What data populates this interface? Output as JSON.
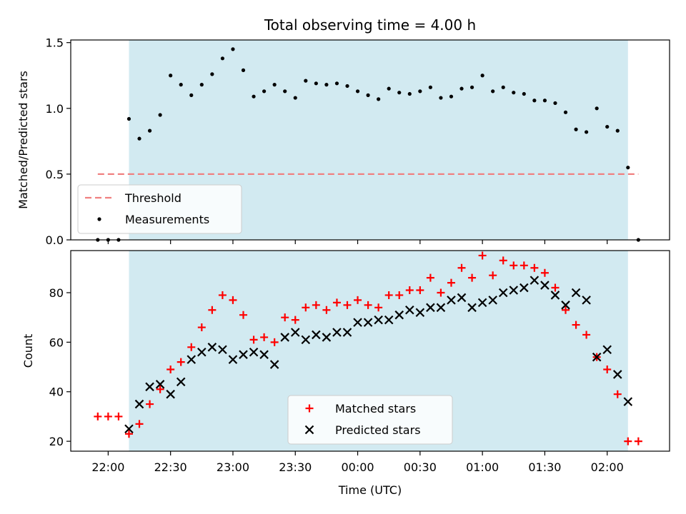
{
  "chart_data": {
    "title": "Total observing time = 4.00 h",
    "xlabel": "Time (UTC)",
    "x_ticks": [
      "22:00",
      "22:30",
      "23:00",
      "23:30",
      "00:00",
      "00:30",
      "01:00",
      "01:30",
      "02:00"
    ],
    "shaded_window": {
      "start": "22:10",
      "end": "02:10",
      "color": "#add8e6"
    },
    "panels": [
      {
        "type": "scatter",
        "ylabel": "Matched/Predicted stars",
        "ylim": [
          0,
          1.52
        ],
        "y_ticks": [
          0.0,
          0.5,
          1.0,
          1.5
        ],
        "legend": "lower-left",
        "threshold": {
          "name": "Threshold",
          "value": 0.5,
          "x_start": "21:55",
          "x_end": "02:15",
          "color": "#f08080"
        },
        "series": [
          {
            "name": "Measurements",
            "color": "#000000",
            "marker": "dot",
            "x": [
              "21:55",
              "22:00",
              "22:05",
              "22:10",
              "22:15",
              "22:20",
              "22:25",
              "22:30",
              "22:35",
              "22:40",
              "22:45",
              "22:50",
              "22:55",
              "23:00",
              "23:05",
              "23:10",
              "23:15",
              "23:20",
              "23:25",
              "23:30",
              "23:35",
              "23:40",
              "23:45",
              "23:50",
              "23:55",
              "00:00",
              "00:05",
              "00:10",
              "00:15",
              "00:20",
              "00:25",
              "00:30",
              "00:35",
              "00:40",
              "00:45",
              "00:50",
              "00:55",
              "01:00",
              "01:05",
              "01:10",
              "01:15",
              "01:20",
              "01:25",
              "01:30",
              "01:35",
              "01:40",
              "01:45",
              "01:50",
              "01:55",
              "02:00",
              "02:05",
              "02:10",
              "02:15"
            ],
            "y": [
              0,
              0,
              0,
              0.92,
              0.77,
              0.83,
              0.95,
              1.25,
              1.18,
              1.1,
              1.18,
              1.26,
              1.38,
              1.45,
              1.29,
              1.09,
              1.13,
              1.18,
              1.13,
              1.08,
              1.21,
              1.19,
              1.18,
              1.19,
              1.17,
              1.13,
              1.1,
              1.07,
              1.15,
              1.12,
              1.11,
              1.13,
              1.16,
              1.08,
              1.09,
              1.15,
              1.16,
              1.25,
              1.13,
              1.16,
              1.12,
              1.11,
              1.06,
              1.06,
              1.04,
              0.97,
              0.84,
              0.82,
              1.0,
              0.86,
              0.83,
              0.55,
              0.0
            ]
          }
        ]
      },
      {
        "type": "scatter",
        "ylabel": "Count",
        "ylim": [
          16,
          97
        ],
        "y_ticks": [
          20,
          40,
          60,
          80
        ],
        "legend": "lower-center",
        "series": [
          {
            "name": "Matched stars",
            "color": "#ff0000",
            "marker": "plus",
            "x": [
              "21:55",
              "22:00",
              "22:05",
              "22:10",
              "22:15",
              "22:20",
              "22:25",
              "22:30",
              "22:35",
              "22:40",
              "22:45",
              "22:50",
              "22:55",
              "23:00",
              "23:05",
              "23:10",
              "23:15",
              "23:20",
              "23:25",
              "23:30",
              "23:35",
              "23:40",
              "23:45",
              "23:50",
              "23:55",
              "00:00",
              "00:05",
              "00:10",
              "00:15",
              "00:20",
              "00:25",
              "00:30",
              "00:35",
              "00:40",
              "00:45",
              "00:50",
              "00:55",
              "01:00",
              "01:05",
              "01:10",
              "01:15",
              "01:20",
              "01:25",
              "01:30",
              "01:35",
              "01:40",
              "01:45",
              "01:50",
              "01:55",
              "02:00",
              "02:05",
              "02:10",
              "02:15"
            ],
            "y": [
              30,
              30,
              30,
              23,
              27,
              35,
              41,
              49,
              52,
              58,
              66,
              73,
              79,
              77,
              71,
              61,
              62,
              60,
              70,
              69,
              74,
              75,
              73,
              76,
              75,
              77,
              75,
              74,
              79,
              79,
              81,
              81,
              86,
              80,
              84,
              90,
              86,
              95,
              87,
              93,
              91,
              91,
              90,
              88,
              82,
              73,
              67,
              63,
              54,
              49,
              39,
              20,
              20
            ]
          },
          {
            "name": "Predicted stars",
            "color": "#000000",
            "marker": "x",
            "x": [
              "22:10",
              "22:15",
              "22:20",
              "22:25",
              "22:30",
              "22:35",
              "22:40",
              "22:45",
              "22:50",
              "22:55",
              "23:00",
              "23:05",
              "23:10",
              "23:15",
              "23:20",
              "23:25",
              "23:30",
              "23:35",
              "23:40",
              "23:45",
              "23:50",
              "23:55",
              "00:00",
              "00:05",
              "00:10",
              "00:15",
              "00:20",
              "00:25",
              "00:30",
              "00:35",
              "00:40",
              "00:45",
              "00:50",
              "00:55",
              "01:00",
              "01:05",
              "01:10",
              "01:15",
              "01:20",
              "01:25",
              "01:30",
              "01:35",
              "01:40",
              "01:45",
              "01:50",
              "01:55",
              "02:00",
              "02:05",
              "02:10"
            ],
            "y": [
              25,
              35,
              42,
              43,
              39,
              44,
              53,
              56,
              58,
              57,
              53,
              55,
              56,
              55,
              51,
              62,
              64,
              61,
              63,
              62,
              64,
              64,
              68,
              68,
              69,
              69,
              71,
              73,
              72,
              74,
              74,
              77,
              78,
              74,
              76,
              77,
              80,
              81,
              82,
              85,
              83,
              79,
              75,
              80,
              77,
              54,
              57,
              47,
              36
            ]
          }
        ]
      }
    ]
  }
}
